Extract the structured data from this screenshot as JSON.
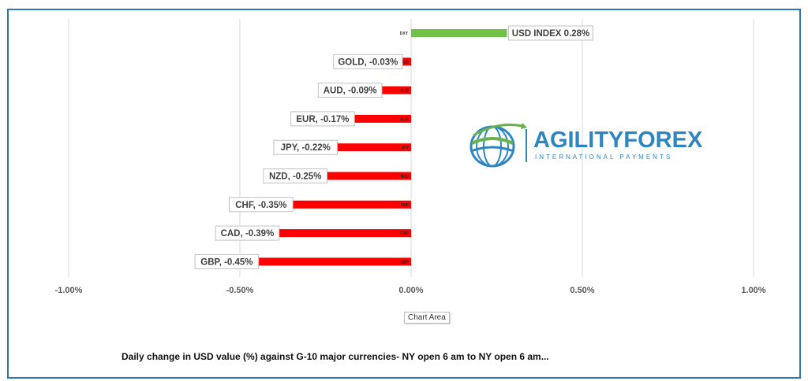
{
  "chart_data": {
    "type": "bar",
    "orientation": "horizontal",
    "categories": [
      "DXY",
      "GOLD",
      "AUD",
      "EUR",
      "JPY",
      "NZD",
      "CHF",
      "CAD",
      "GBP"
    ],
    "values": [
      0.28,
      -0.03,
      -0.09,
      -0.17,
      -0.22,
      -0.25,
      -0.35,
      -0.39,
      -0.45
    ],
    "data_labels": [
      "USD INDEX 0.28%",
      "GOLD, -0.03%",
      "AUD, -0.09%",
      "EUR, -0.17%",
      "JPY, -0.22%",
      "NZD, -0.25%",
      "CHF, -0.35%",
      "CAD, -0.39%",
      "GBP, -0.45%"
    ],
    "colors": {
      "positive": "#70c04a",
      "negative": "#ff0000",
      "grid": "#d9d9d9"
    },
    "xlim": [
      -1.0,
      1.0
    ],
    "ticks": [
      -1.0,
      -0.5,
      0.0,
      0.5,
      1.0
    ],
    "tick_labels": [
      "-1.00%",
      "-0.50%",
      "0.00%",
      "0.50%",
      "1.00%"
    ],
    "grid": true,
    "legend": "none"
  },
  "tooltip": "Chart Area",
  "caption": "Daily change in  USD value (%)  against  G-10 major currencies- NY open 6 am to NY open 6 am...",
  "logo": {
    "name": "AGILITYFOREX",
    "tagline": "INTERNATIONAL PAYMENTS",
    "colors": {
      "blue": "#2e86c1",
      "green": "#6ab04c"
    }
  }
}
